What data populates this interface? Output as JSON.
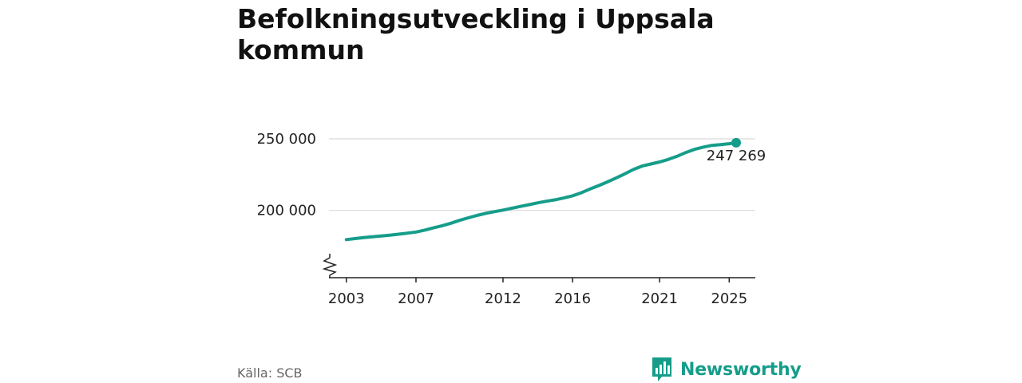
{
  "title": "Befolkningsutveckling i Uppsala kommun",
  "source": "Källa: SCB",
  "brand": {
    "name": "Newsworthy",
    "icon": "newsworthy-logo-icon",
    "color": "#159d8a"
  },
  "colors": {
    "line": "#159d8a",
    "grid": "#d9d9d9",
    "axis": "#222222"
  },
  "chart_data": {
    "type": "line",
    "title": "Befolkningsutveckling i Uppsala kommun",
    "xlabel": "",
    "ylabel": "",
    "x_ticks": [
      2003,
      2007,
      2012,
      2016,
      2021,
      2025
    ],
    "x_tick_labels": [
      "2003",
      "2007",
      "2012",
      "2016",
      "2021",
      "2025"
    ],
    "y_ticks": [
      200000,
      250000
    ],
    "y_tick_labels": [
      "200 000",
      "250 000"
    ],
    "xlim": [
      2002.0,
      2026.5
    ],
    "ylim": [
      153000,
      255000
    ],
    "y_axis_break": true,
    "grid": "horizontal",
    "last_value_label": "247 269",
    "series": [
      {
        "x": [
          2003.0,
          2003.5,
          2004.0,
          2004.5,
          2005.0,
          2005.5,
          2006.0,
          2006.5,
          2007.0,
          2007.5,
          2008.0,
          2008.5,
          2009.0,
          2009.5,
          2010.0,
          2010.5,
          2011.0,
          2011.5,
          2012.0,
          2012.5,
          2013.0,
          2013.5,
          2014.0,
          2014.5,
          2015.0,
          2015.5,
          2016.0,
          2016.5,
          2017.0,
          2017.5,
          2018.0,
          2018.5,
          2019.0,
          2019.5,
          2020.0,
          2020.5,
          2021.0,
          2021.5,
          2022.0,
          2022.5,
          2023.0,
          2023.5,
          2024.0,
          2024.5,
          2025.0,
          2025.4
        ],
        "values": [
          179600,
          180300,
          181000,
          181600,
          182100,
          182700,
          183400,
          184100,
          184900,
          186200,
          187800,
          189300,
          191000,
          193000,
          194800,
          196500,
          197900,
          199100,
          200200,
          201500,
          202800,
          204000,
          205300,
          206400,
          207400,
          208700,
          210200,
          212300,
          214900,
          217300,
          219900,
          222600,
          225500,
          228600,
          231000,
          232400,
          233800,
          235600,
          237800,
          240400,
          242600,
          244200,
          245400,
          245900,
          246600,
          247269
        ]
      }
    ]
  }
}
